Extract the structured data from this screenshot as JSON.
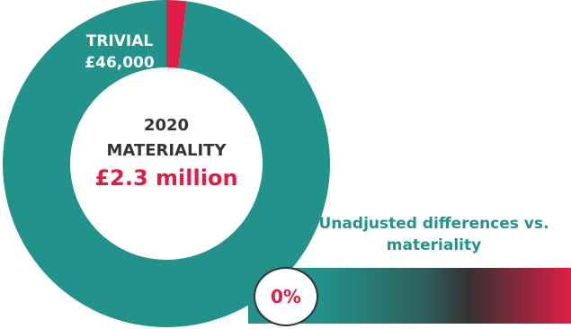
{
  "chart_data": {
    "type": "donut",
    "slices": [
      {
        "label": "TRIVIAL",
        "value_label": "£46,000",
        "value": 46000,
        "color": "#e01e45"
      },
      {
        "label": "",
        "value_label": "",
        "value": 2254000,
        "color": "#21938a"
      }
    ],
    "total": 2300000,
    "center": {
      "year": "2020",
      "title": "MATERIALITY",
      "value_text": "£2.3 million"
    },
    "gauge": {
      "caption_line1": "Unadjusted differences vs.",
      "caption_line2": "materiality",
      "value": 0,
      "value_text": "0%",
      "color_start": "#21938a",
      "color_end": "#e01e45"
    }
  },
  "colors": {
    "teal": "#21938a",
    "red": "#e01e45",
    "dark_text": "#333333"
  }
}
